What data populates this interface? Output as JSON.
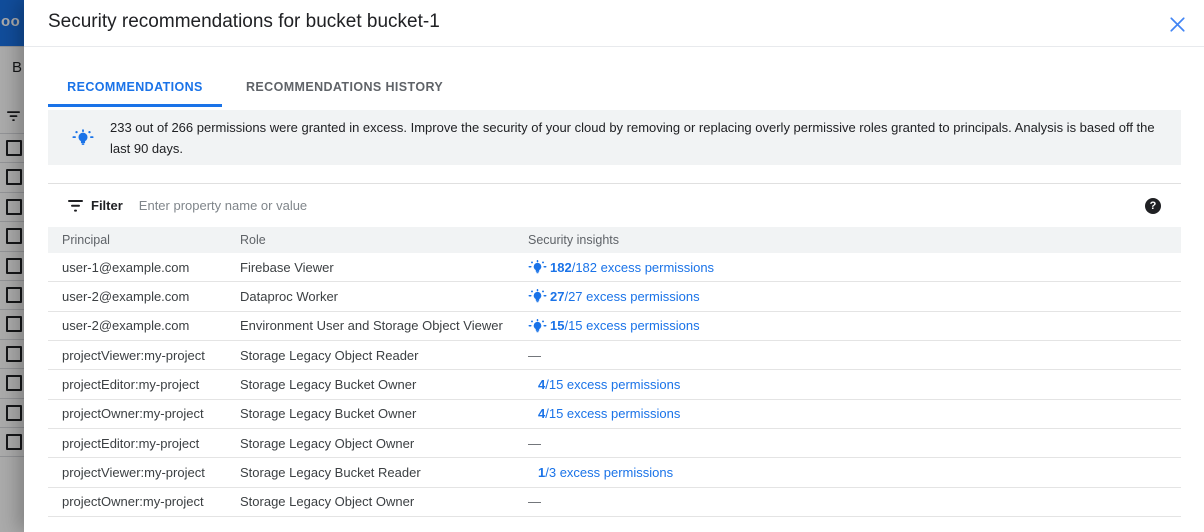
{
  "background": {
    "logo_fragment": "oo",
    "page_heading_fragment": "B",
    "row_count": 11
  },
  "colors": {
    "accent": "#1a73e8",
    "link": "#1a73e8",
    "close_icon": "#4285f4",
    "banner_bg": "#f1f3f4",
    "appbar_blue": "#1a73e8"
  },
  "dialog": {
    "title": "Security recommendations for bucket bucket-1",
    "tabs": [
      {
        "label": "RECOMMENDATIONS",
        "active": true
      },
      {
        "label": "RECOMMENDATIONS HISTORY",
        "active": false
      }
    ],
    "banner": {
      "icon": "insight-lightbulb-icon",
      "text": "233 out of 266 permissions were granted in excess. Improve the security of your cloud by removing or replacing overly permissive roles granted to principals. Analysis is based off the last 90 days."
    },
    "filter": {
      "label": "Filter",
      "placeholder": "Enter property name or value",
      "help_glyph": "?"
    },
    "table": {
      "columns": [
        "Principal",
        "Role",
        "Security insights"
      ],
      "rows": [
        {
          "principal": "user-1@example.com",
          "role": "Firebase Viewer",
          "insight": {
            "style": "icon-link",
            "bold": "182",
            "rest": "/182 excess permissions"
          }
        },
        {
          "principal": "user-2@example.com",
          "role": "Dataproc Worker",
          "insight": {
            "style": "icon-link",
            "bold": "27",
            "rest": "/27 excess permissions"
          }
        },
        {
          "principal": "user-2@example.com",
          "role": "Environment User and Storage Object Viewer",
          "insight": {
            "style": "icon-link",
            "bold": "15",
            "rest": "/15 excess permissions"
          }
        },
        {
          "principal": "projectViewer:my-project",
          "role": "Storage Legacy Object Reader",
          "insight": {
            "style": "dash",
            "text": "—"
          }
        },
        {
          "principal": "projectEditor:my-project",
          "role": "Storage Legacy Bucket Owner",
          "insight": {
            "style": "link",
            "bold": "4",
            "rest": "/15 excess permissions"
          }
        },
        {
          "principal": "projectOwner:my-project",
          "role": "Storage Legacy Bucket Owner",
          "insight": {
            "style": "link",
            "bold": "4",
            "rest": "/15 excess permissions"
          }
        },
        {
          "principal": "projectEditor:my-project",
          "role": "Storage Legacy Object Owner",
          "insight": {
            "style": "dash",
            "text": "—"
          }
        },
        {
          "principal": "projectViewer:my-project",
          "role": "Storage Legacy Bucket Reader",
          "insight": {
            "style": "link",
            "bold": "1",
            "rest": "/3 excess permissions"
          }
        },
        {
          "principal": "projectOwner:my-project",
          "role": "Storage Legacy Object Owner",
          "insight": {
            "style": "dash",
            "text": "—"
          }
        }
      ]
    }
  }
}
